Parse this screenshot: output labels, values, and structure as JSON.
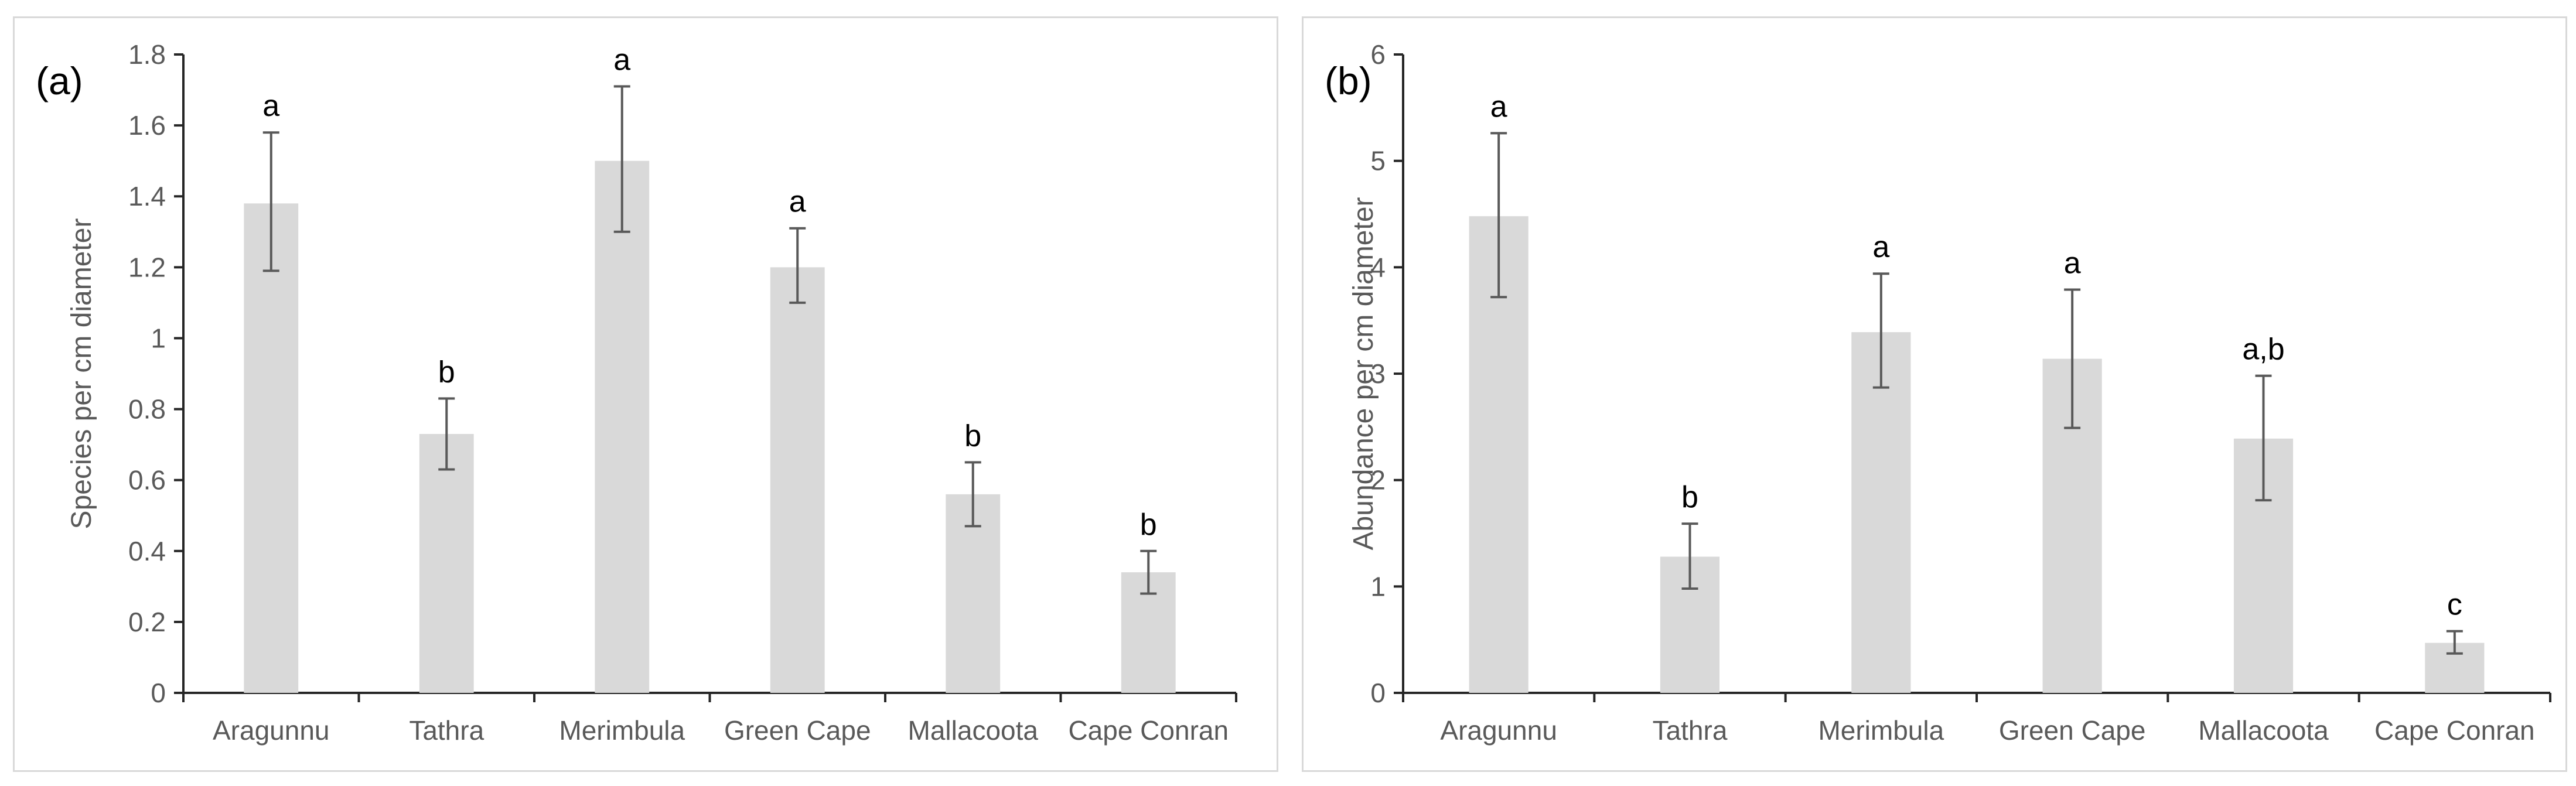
{
  "chart_data": [
    {
      "type": "bar",
      "panel_label": "(a)",
      "title": "",
      "xlabel": "",
      "ylabel": "Species per cm diameter",
      "categories": [
        "Aragunnu",
        "Tathra",
        "Merimbula",
        "Green Cape",
        "Mallacoota",
        "Cape Conran"
      ],
      "values": [
        1.38,
        0.73,
        1.5,
        1.2,
        0.56,
        0.34
      ],
      "error_low": [
        1.19,
        0.63,
        1.3,
        1.1,
        0.47,
        0.28
      ],
      "error_high": [
        1.58,
        0.83,
        1.71,
        1.31,
        0.65,
        0.4
      ],
      "significance": [
        "a",
        "b",
        "a",
        "a",
        "b",
        "b"
      ],
      "ylim": [
        0,
        1.8
      ],
      "yticks": [
        0,
        0.2,
        0.4,
        0.6,
        0.8,
        1,
        1.2,
        1.4,
        1.6,
        1.8
      ],
      "ytick_labels": [
        "0",
        "0.2",
        "0.4",
        "0.6",
        "0.8",
        "1",
        "1.2",
        "1.4",
        "1.6",
        "1.8"
      ],
      "grid": false,
      "color": "#d9d9d9"
    },
    {
      "type": "bar",
      "panel_label": "(b)",
      "title": "",
      "xlabel": "",
      "ylabel": "Abundance per cm diameter",
      "categories": [
        "Aragunnu",
        "Tathra",
        "Merimbula",
        "Green Cape",
        "Mallacoota",
        "Cape Conran"
      ],
      "values": [
        4.48,
        1.28,
        3.39,
        3.14,
        2.39,
        0.47
      ],
      "error_low": [
        3.72,
        0.98,
        2.87,
        2.49,
        1.81,
        0.37
      ],
      "error_high": [
        5.26,
        1.59,
        3.94,
        3.79,
        2.98,
        0.58
      ],
      "significance": [
        "a",
        "b",
        "a",
        "a",
        "a,b",
        "c"
      ],
      "ylim": [
        0,
        6
      ],
      "yticks": [
        0,
        1,
        2,
        3,
        4,
        5,
        6
      ],
      "ytick_labels": [
        "0",
        "1",
        "2",
        "3",
        "4",
        "5",
        "6"
      ],
      "grid": false,
      "color": "#d9d9d9"
    }
  ]
}
